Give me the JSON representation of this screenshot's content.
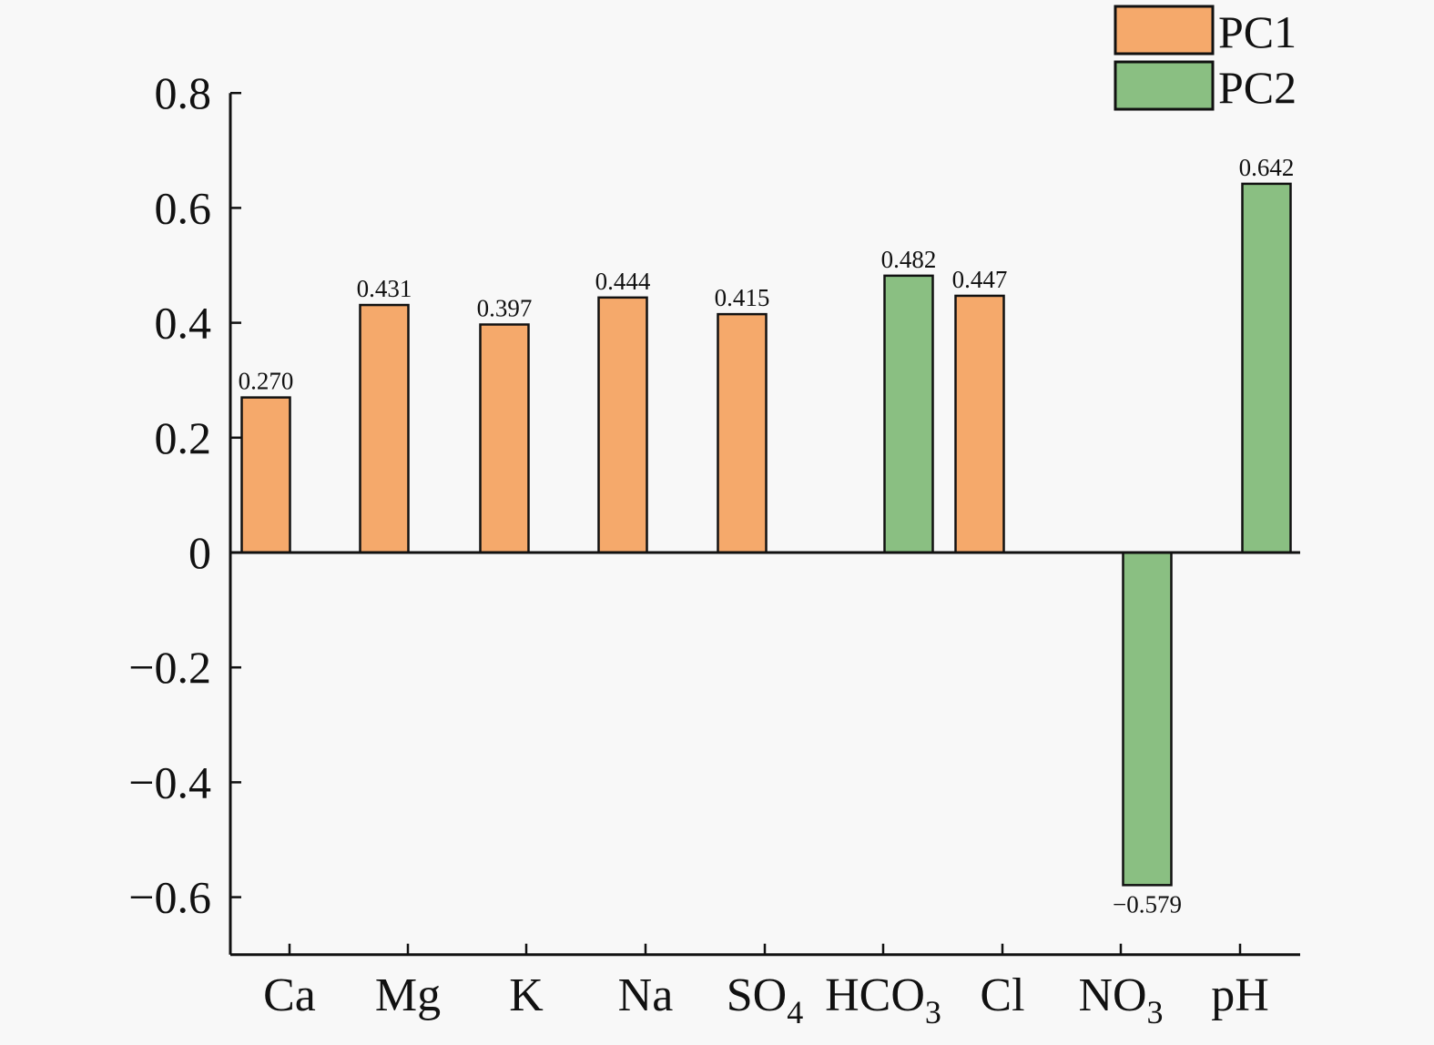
{
  "chart_data": {
    "type": "bar",
    "title": "",
    "xlabel": "",
    "ylabel": "",
    "ylim": [
      -0.7,
      0.8
    ],
    "yticks": [
      {
        "value": 0.8,
        "label": "0.8"
      },
      {
        "value": 0.6,
        "label": "0.6"
      },
      {
        "value": 0.4,
        "label": "0.4"
      },
      {
        "value": 0.2,
        "label": "0.2"
      },
      {
        "value": 0,
        "label": "0"
      },
      {
        "value": -0.2,
        "label": "−0.2"
      },
      {
        "value": -0.4,
        "label": "−0.4"
      },
      {
        "value": -0.6,
        "label": "−0.6"
      }
    ],
    "categories": [
      {
        "base": "Ca",
        "sub": ""
      },
      {
        "base": "Mg",
        "sub": ""
      },
      {
        "base": "K",
        "sub": ""
      },
      {
        "base": "Na",
        "sub": ""
      },
      {
        "base": "SO",
        "sub": "4"
      },
      {
        "base": "HCO",
        "sub": "3"
      },
      {
        "base": "Cl",
        "sub": ""
      },
      {
        "base": "NO",
        "sub": "3"
      },
      {
        "base": "pH",
        "sub": ""
      }
    ],
    "bars": [
      {
        "category": "Ca",
        "series": "PC1",
        "value": 0.27,
        "label": "0.270"
      },
      {
        "category": "Mg",
        "series": "PC1",
        "value": 0.431,
        "label": "0.431"
      },
      {
        "category": "K",
        "series": "PC1",
        "value": 0.397,
        "label": "0.397"
      },
      {
        "category": "Na",
        "series": "PC1",
        "value": 0.444,
        "label": "0.444"
      },
      {
        "category": "SO4",
        "series": "PC1",
        "value": 0.415,
        "label": "0.415"
      },
      {
        "category": "HCO3",
        "series": "PC2",
        "value": 0.482,
        "label": "0.482"
      },
      {
        "category": "Cl",
        "series": "PC1",
        "value": 0.447,
        "label": "0.447"
      },
      {
        "category": "NO3",
        "series": "PC2",
        "value": -0.579,
        "label": "−0.579"
      },
      {
        "category": "pH",
        "series": "PC2",
        "value": 0.642,
        "label": "0.642"
      }
    ],
    "series": [
      {
        "name": "PC1",
        "color": "#f5a96b"
      },
      {
        "name": "PC2",
        "color": "#8abf82"
      }
    ],
    "legend_position": "top-right",
    "grid": false
  }
}
